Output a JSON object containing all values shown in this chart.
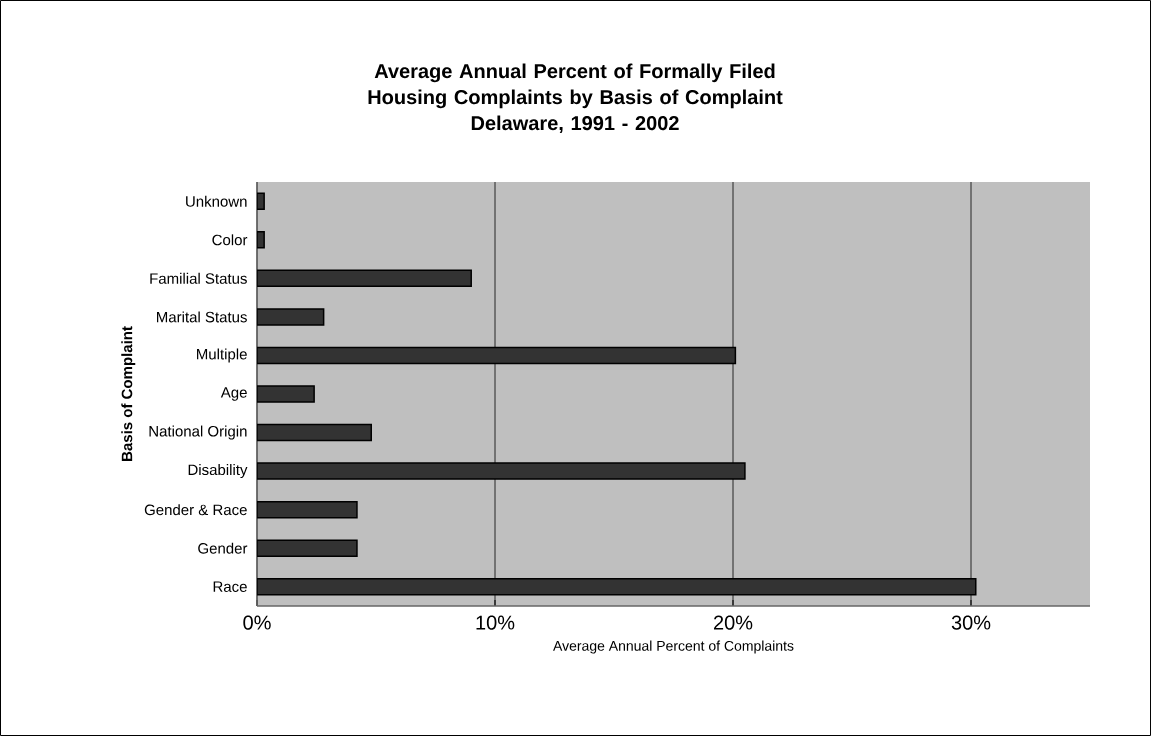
{
  "chart_data": {
    "type": "bar",
    "orientation": "horizontal",
    "title": "Average Annual Percent of Formally Filed Housing Complaints by Basis of Complaint",
    "subtitle": "Delaware, 1991 - 2002",
    "xlabel": "Average Annual Percent of Complaints",
    "ylabel": "Basis of Complaint",
    "categories": [
      "Unknown",
      "Color",
      "Familial Status",
      "Marital Status",
      "Multiple",
      "Age",
      "National Origin",
      "Disability",
      "Gender & Race",
      "Gender",
      "Race"
    ],
    "values": [
      0.3,
      0.3,
      9.0,
      2.8,
      20.1,
      2.4,
      4.8,
      20.5,
      4.2,
      4.2,
      30.2
    ],
    "color": "#333333",
    "xlim": [
      0,
      35
    ],
    "xticks": [
      {
        "value": 0,
        "label": "0%"
      },
      {
        "value": 10,
        "label": "10%"
      },
      {
        "value": 20,
        "label": "20%"
      },
      {
        "value": 30,
        "label": "30%"
      }
    ],
    "grid": "x"
  }
}
